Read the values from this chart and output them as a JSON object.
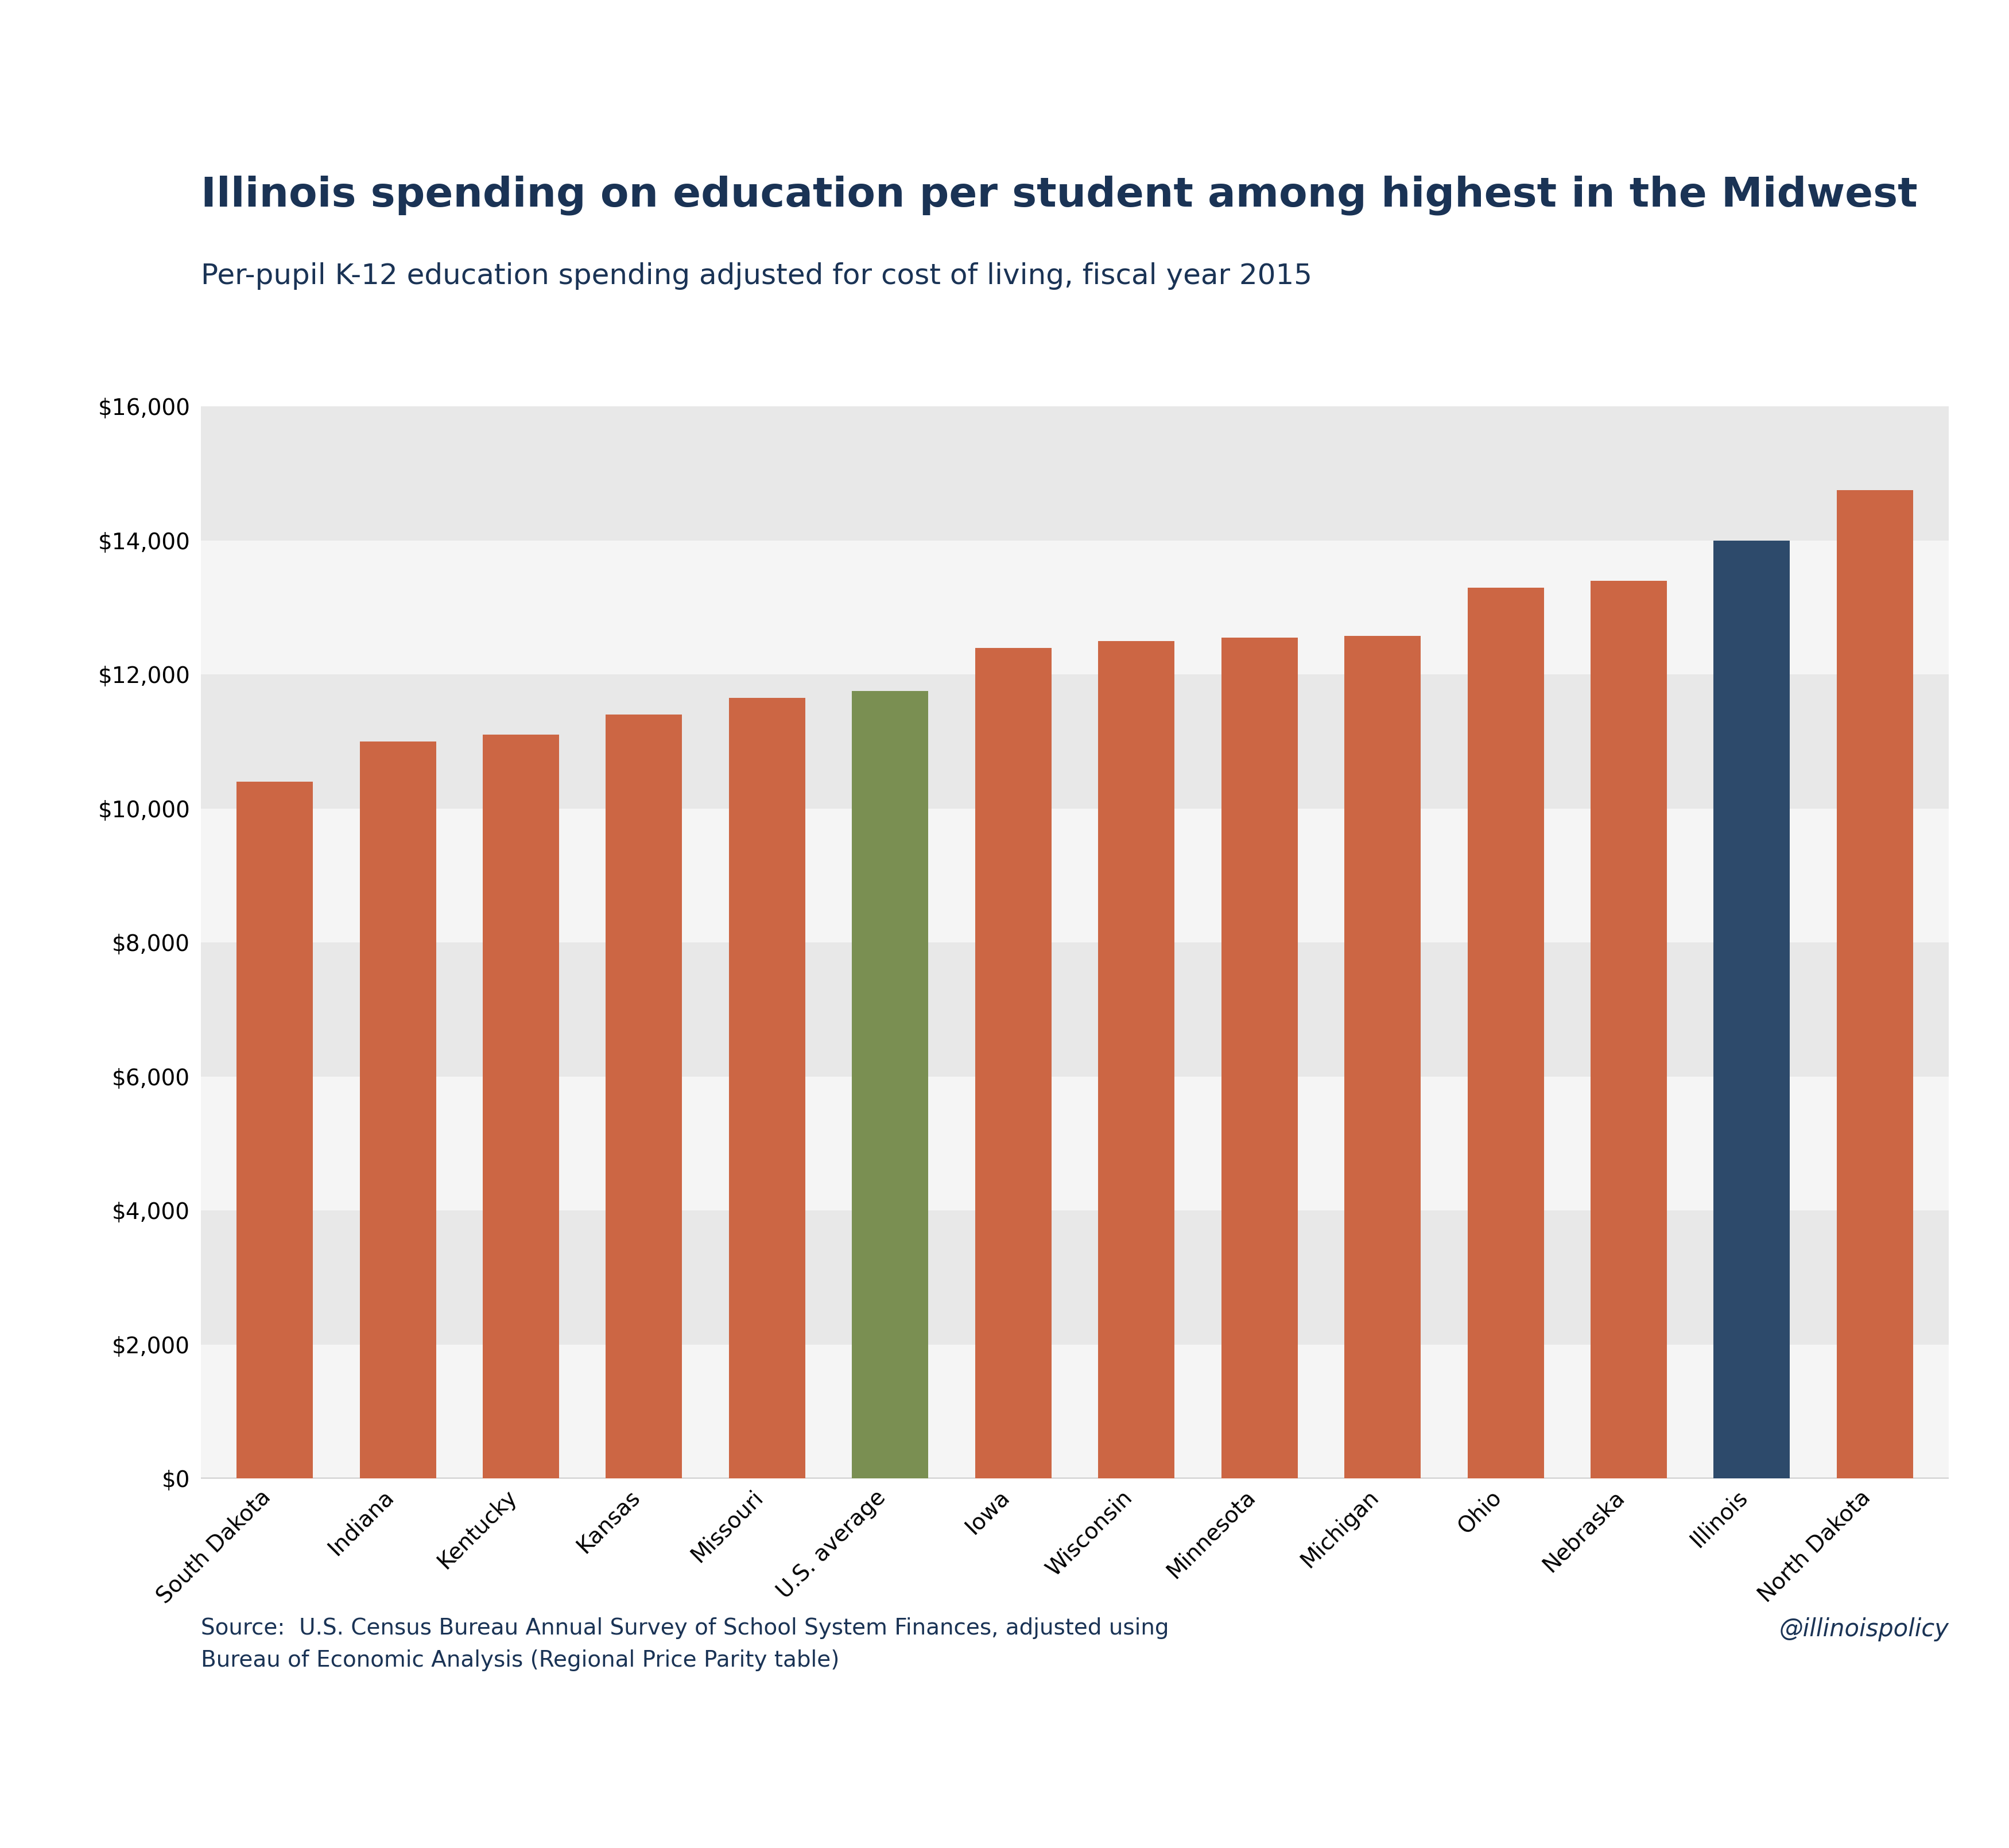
{
  "title": "Illinois spending on education per student among highest in the Midwest",
  "subtitle": "Per-pupil K-12 education spending adjusted for cost of living, fiscal year 2015",
  "source_line1": "Source:  U.S. Census Bureau Annual Survey of School System Finances, adjusted using",
  "source_line2": "Bureau of Economic Analysis (Regional Price Parity table)",
  "watermark": "@illinoispolicy",
  "categories": [
    "South Dakota",
    "Indiana",
    "Kentucky",
    "Kansas",
    "Missouri",
    "U.S. average",
    "Iowa",
    "Wisconsin",
    "Minnesota",
    "Michigan",
    "Ohio",
    "Nebraska",
    "Illinois",
    "North Dakota"
  ],
  "values": [
    10400,
    11000,
    11100,
    11400,
    11650,
    11750,
    12400,
    12500,
    12550,
    12580,
    13300,
    13400,
    14000,
    14750
  ],
  "bar_colors": [
    "#cc6644",
    "#cc6644",
    "#cc6644",
    "#cc6644",
    "#cc6644",
    "#7a8f52",
    "#cc6644",
    "#cc6644",
    "#cc6644",
    "#cc6644",
    "#cc6644",
    "#cc6644",
    "#2d4a6b",
    "#cc6644"
  ],
  "ylim": [
    0,
    16000
  ],
  "yticks": [
    0,
    2000,
    4000,
    6000,
    8000,
    10000,
    12000,
    14000,
    16000
  ],
  "background_color": "#ffffff",
  "plot_bg_color": "#ffffff",
  "title_color": "#1a3355",
  "subtitle_color": "#1a3355",
  "source_color": "#1a3355",
  "watermark_color": "#1a3355",
  "title_fontsize": 52,
  "subtitle_fontsize": 36,
  "source_fontsize": 28,
  "watermark_fontsize": 30,
  "tick_label_fontsize": 28,
  "ytick_fontsize": 28,
  "bar_width": 0.62,
  "stripe_dark": "#e8e8e8",
  "stripe_light": "#f5f5f5",
  "axline_color": "#aaaaaa"
}
